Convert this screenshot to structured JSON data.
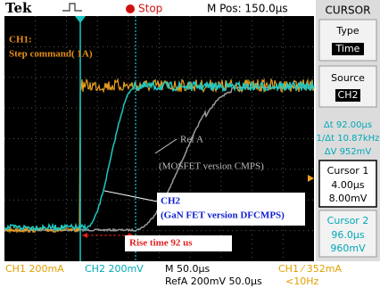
{
  "top_bar": {
    "brand": "Tek",
    "status": "Stop",
    "position": "M Pos: 150.0µs"
  },
  "side_panel": {
    "mode": "CURSOR",
    "type_label": "Type",
    "type_value": "Time",
    "source_label": "Source",
    "source_value": "CH2",
    "delta_t": "Δt 92.00µs",
    "inverse_delta_t": "1/Δt 10.87kHz",
    "delta_v": "ΔV 952mV",
    "cursor1": {
      "label": "Cursor 1",
      "time": "4.00µs",
      "voltage": "8.00mV"
    },
    "cursor2": {
      "label": "Cursor 2",
      "time": "96.0µs",
      "voltage": "960mV"
    }
  },
  "annotations": {
    "ch1_title": "CH1:",
    "ch1_desc": "Step command( 1A)",
    "refa_title": "Ref A",
    "refa_desc": "(MOSFET version CMPS)",
    "ch2_title": "CH2",
    "ch2_desc": "(GaN FET version DFCMPS)",
    "rise_time": "Rise time 92 us"
  },
  "bottom_bar": {
    "ch1_scale": "CH1  200mA",
    "ch2_scale": "CH2  200mV",
    "timebase": "M 50.0µs",
    "trigger": "CH1 ⁄ 352mA",
    "refa": "RefA 200mV 50.0µs",
    "frequency": "<10Hz"
  }
}
